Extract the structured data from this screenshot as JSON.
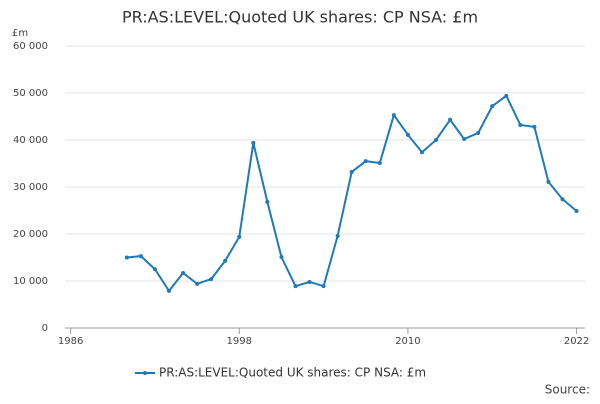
{
  "chart_data": {
    "type": "line",
    "title": "PR:AS:LEVEL:Quoted UK shares: CP NSA: £m",
    "y_unit": "£m",
    "source": "Source:",
    "x": [
      1990,
      1991,
      1992,
      1993,
      1994,
      1995,
      1996,
      1997,
      1998,
      1999,
      2000,
      2001,
      2002,
      2003,
      2004,
      2005,
      2006,
      2007,
      2008,
      2009,
      2010,
      2011,
      2012,
      2013,
      2014,
      2015,
      2016,
      2017,
      2018,
      2019,
      2020,
      2021,
      2022
    ],
    "series": [
      {
        "name": "PR:AS:LEVEL:Quoted UK shares: CP NSA: £m",
        "color": "#1f7ab5",
        "values": [
          15000,
          15300,
          12500,
          7900,
          11700,
          9400,
          10400,
          14300,
          19400,
          39400,
          26800,
          15100,
          8900,
          9800,
          8900,
          19600,
          33200,
          35500,
          35100,
          45300,
          41100,
          37400,
          40000,
          44300,
          40200,
          41500,
          47200,
          49400,
          43200,
          42800,
          31100,
          27400,
          24900
        ]
      }
    ],
    "xlim": [
      1985.6,
      2022.6
    ],
    "xticks": [
      1986,
      1998,
      2010,
      2022
    ],
    "ylim": [
      0,
      60000
    ],
    "yticks": [
      0,
      {
        "value": 10000,
        "label": "10 000"
      },
      {
        "value": 20000,
        "label": "20 000"
      },
      {
        "value": 30000,
        "label": "30 000"
      },
      {
        "value": 40000,
        "label": "40 000"
      },
      {
        "value": 50000,
        "label": "50 000"
      },
      {
        "value": 60000,
        "label": "60 000"
      }
    ],
    "grid": true
  }
}
